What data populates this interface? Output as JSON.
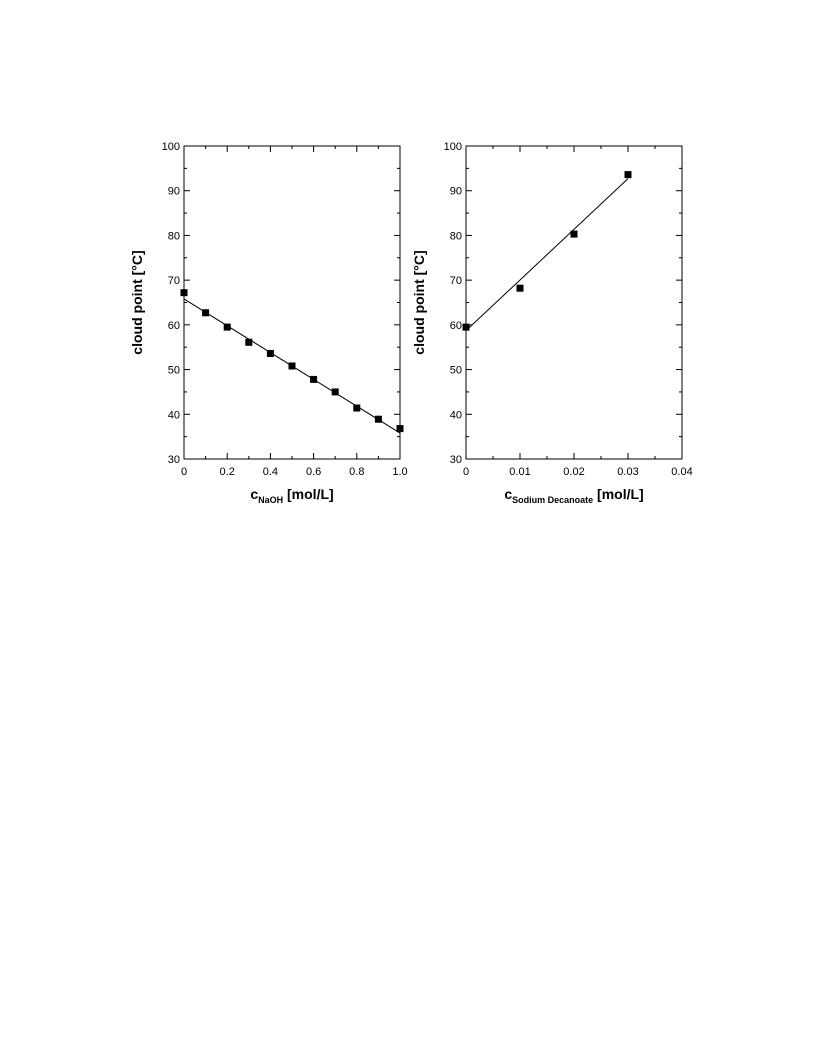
{
  "chart_data": [
    {
      "type": "scatter",
      "xlabel": {
        "main": "c",
        "sub": "NaOH",
        "unit": " [mol/L]"
      },
      "ylabel": "cloud point [°C]",
      "xlim": [
        0,
        1.0
      ],
      "ylim": [
        30,
        100
      ],
      "xticks": [
        0,
        0.2,
        0.4,
        0.6,
        0.8,
        1.0
      ],
      "xtick_labels": [
        "0",
        "0.2",
        "0.4",
        "0.6",
        "0.8",
        "1.0"
      ],
      "yticks": [
        30,
        40,
        50,
        60,
        70,
        80,
        90,
        100
      ],
      "ytick_labels": [
        "30",
        "40",
        "50",
        "60",
        "70",
        "80",
        "90",
        "100"
      ],
      "series": [
        {
          "points": [
            {
              "x": 0.0,
              "y": 67.2
            },
            {
              "x": 0.1,
              "y": 62.7
            },
            {
              "x": 0.2,
              "y": 59.5
            },
            {
              "x": 0.3,
              "y": 56.1
            },
            {
              "x": 0.4,
              "y": 53.6
            },
            {
              "x": 0.5,
              "y": 50.8
            },
            {
              "x": 0.6,
              "y": 47.8
            },
            {
              "x": 0.7,
              "y": 45.0
            },
            {
              "x": 0.8,
              "y": 41.4
            },
            {
              "x": 0.9,
              "y": 38.9
            },
            {
              "x": 1.0,
              "y": 36.8
            }
          ],
          "fit_line": {
            "x": [
              0,
              1.0
            ],
            "y": [
              65.8,
              35.8
            ]
          },
          "color": "#000000"
        }
      ],
      "grid": false,
      "legend": "none"
    },
    {
      "type": "scatter",
      "xlabel": {
        "main": "c",
        "sub": "Sodium Decanoate",
        "unit": " [mol/L]"
      },
      "ylabel": "cloud point [°C]",
      "xlim": [
        0,
        0.04
      ],
      "ylim": [
        30,
        100
      ],
      "xticks": [
        0,
        0.01,
        0.02,
        0.03,
        0.04
      ],
      "xtick_labels": [
        "0",
        "0.01",
        "0.02",
        "0.03",
        "0.04"
      ],
      "yticks": [
        30,
        40,
        50,
        60,
        70,
        80,
        90,
        100
      ],
      "ytick_labels": [
        "30",
        "40",
        "50",
        "60",
        "70",
        "80",
        "90",
        "100"
      ],
      "series": [
        {
          "points": [
            {
              "x": 0.0,
              "y": 59.5
            },
            {
              "x": 0.01,
              "y": 68.2
            },
            {
              "x": 0.02,
              "y": 80.3
            },
            {
              "x": 0.03,
              "y": 93.6
            }
          ],
          "fit_line": {
            "x": [
              0,
              0.03
            ],
            "y": [
              58.7,
              92.7
            ]
          },
          "color": "#000000"
        }
      ],
      "grid": false,
      "legend": "none"
    }
  ]
}
